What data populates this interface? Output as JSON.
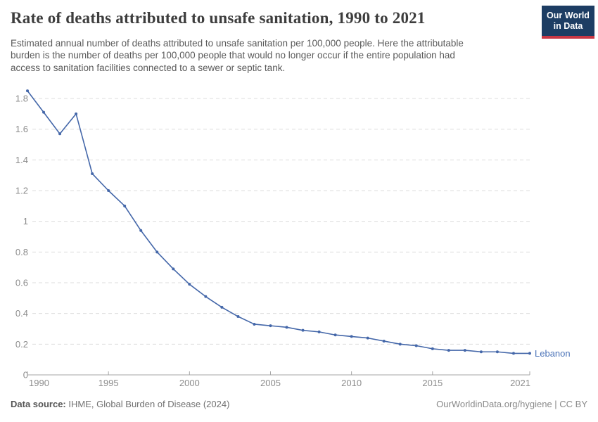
{
  "header": {
    "title": "Rate of deaths attributed to unsafe sanitation, 1990 to 2021",
    "subtitle_lines": [
      "Estimated annual number of deaths attributed to unsafe sanitation per 100,000 people. Here the attributable",
      "burden is the number of deaths per 100,000 people that would no longer occur if the entire population had",
      "access to sanitation facilities connected to a sewer or septic tank."
    ],
    "logo_line1": "Our World",
    "logo_line2": "in Data"
  },
  "chart_data": {
    "type": "line",
    "title": "Rate of deaths attributed to unsafe sanitation, 1990 to 2021",
    "xlabel": "",
    "ylabel": "",
    "x": [
      1990,
      1991,
      1992,
      1993,
      1994,
      1995,
      1996,
      1997,
      1998,
      1999,
      2000,
      2001,
      2002,
      2003,
      2004,
      2005,
      2006,
      2007,
      2008,
      2009,
      2010,
      2011,
      2012,
      2013,
      2014,
      2015,
      2016,
      2017,
      2018,
      2019,
      2020,
      2021
    ],
    "series": [
      {
        "name": "Lebanon",
        "color": "#4467a9",
        "values": [
          1.85,
          1.71,
          1.57,
          1.7,
          1.31,
          1.2,
          1.1,
          0.94,
          0.8,
          0.69,
          0.59,
          0.51,
          0.44,
          0.38,
          0.33,
          0.32,
          0.31,
          0.29,
          0.28,
          0.26,
          0.25,
          0.24,
          0.22,
          0.2,
          0.19,
          0.17,
          0.16,
          0.16,
          0.15,
          0.15,
          0.14,
          0.14
        ]
      }
    ],
    "ylim": [
      0,
      1.9
    ],
    "yticks": [
      0.2,
      0.4,
      0.6,
      0.8,
      1,
      1.2,
      1.4,
      1.6,
      1.8
    ],
    "y_zero_label": "0",
    "xticks": [
      1990,
      1995,
      2000,
      2005,
      2010,
      2015,
      2021
    ],
    "grid": "horizontal dashed",
    "legend_position": "end-of-line label"
  },
  "footer": {
    "source_label": "Data source:",
    "source_value": " IHME, Global Burden of Disease (2024)",
    "attribution": "OurWorldinData.org/hygiene | CC BY"
  },
  "colors": {
    "line": "#4467a9",
    "entity_label": "#4b73b8",
    "grid": "#dcdcdc",
    "axis": "#a6a6a6",
    "tick_label": "#8c8c8c",
    "title_text": "#3d3d3d",
    "subtitle_text": "#5a5a5a",
    "logo_bg": "#1d3d63",
    "logo_accent": "#c93744"
  }
}
